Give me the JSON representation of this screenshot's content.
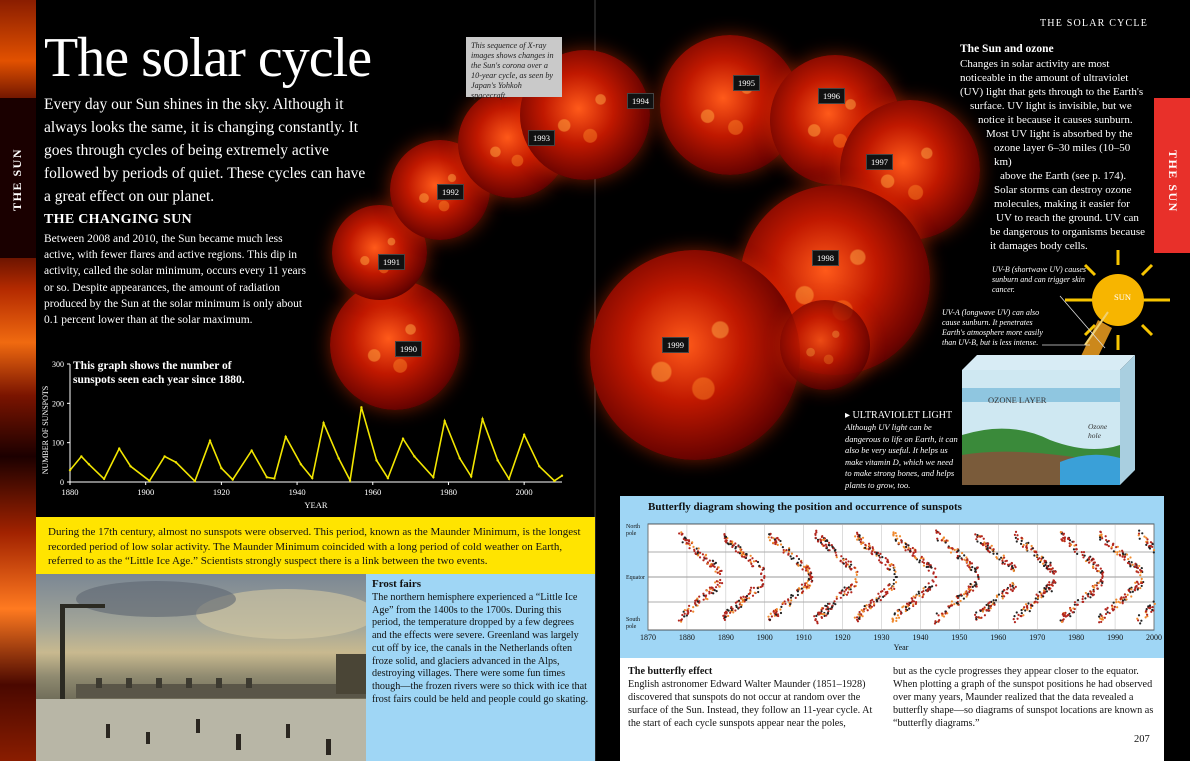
{
  "header": {
    "running_head": "THE SOLAR CYCLE",
    "left_tab": "THE SUN",
    "right_tab": "THE SUN",
    "page_number": "207"
  },
  "intro": {
    "title": "The solar cycle",
    "text": "Every day our Sun shines in the sky. Although it always looks the same, it is changing constantly. It goes through cycles of being extremely active followed by periods of quiet. These cycles can have a great effect on our planet."
  },
  "changing_sun": {
    "heading": "THE CHANGING SUN",
    "text": "Between 2008 and 2010, the Sun became much less active, with fewer flares and active regions. This dip in activity, called the solar minimum, occurs every 11 years or so. Despite appearances, the amount of radiation produced by the Sun at the solar minimum is only about 0.1 percent lower than at the solar maximum."
  },
  "xray": {
    "caption": "This sequence of X-ray images shows changes in the Sun's corona over a 10-year cycle, as seen by Japan's Yohkoh spacecraft.",
    "years": [
      "1990",
      "1991",
      "1992",
      "1993",
      "1994",
      "1995",
      "1996",
      "1997",
      "1998",
      "1999"
    ]
  },
  "sunspot_graph": {
    "caption": "This graph shows the number of sunspots seen each year since 1880.",
    "chart_data": {
      "type": "line",
      "title": "This graph shows the number of sunspots seen each year since 1880.",
      "xlabel": "YEAR",
      "ylabel": "NUMBER OF SUNSPOTS",
      "xlim": [
        1880,
        2010
      ],
      "ylim": [
        0,
        300
      ],
      "x_ticks": [
        "1880",
        "1900",
        "1920",
        "1940",
        "1960",
        "1980",
        "2000"
      ],
      "y_ticks": [
        "0",
        "100",
        "200",
        "300"
      ],
      "grid": false,
      "series_color": "#f2e600",
      "series": [
        {
          "x": [
            1880,
            1883,
            1885,
            1889,
            1893,
            1896,
            1901,
            1905,
            1908,
            1913,
            1917,
            1920,
            1923,
            1928,
            1932,
            1934,
            1937,
            1941,
            1944,
            1947,
            1951,
            1954,
            1957,
            1961,
            1964,
            1968,
            1971,
            1976,
            1979,
            1983,
            1986,
            1989,
            1993,
            1996,
            2000,
            2004,
            2008,
            2010
          ],
          "y": [
            30,
            65,
            45,
            8,
            85,
            40,
            3,
            65,
            50,
            2,
            105,
            35,
            6,
            80,
            12,
            9,
            115,
            45,
            10,
            150,
            60,
            4,
            190,
            55,
            10,
            110,
            65,
            12,
            155,
            60,
            14,
            160,
            55,
            8,
            120,
            40,
            3,
            16
          ]
        }
      ]
    }
  },
  "ozone": {
    "heading": "The Sun and ozone",
    "lines": [
      "Changes in solar activity are most",
      "noticeable in the amount of ultraviolet",
      "(UV) light that gets through to the Earth's",
      "surface. UV light is invisible, but we",
      "notice it because it causes sunburn.",
      "Most UV light is absorbed by the",
      "ozone layer 6–30 miles (10–50 km)",
      "above the Earth (see p. 174).",
      "Solar storms can destroy ozone",
      "molecules, making it easier for",
      "UV to reach the ground. UV can",
      "be dangerous to organisms because",
      "it damages body cells."
    ],
    "uvb_caption": "UV-B (shortwave UV) causes sunburn and can trigger skin cancer.",
    "uva_caption": "UV-A (longwave UV) can also cause sunburn. It penetrates Earth's atmosphere more easily than UV-B, but is less intense.",
    "sun_label": "SUN",
    "ozone_layer_label": "OZONE LAYER",
    "ozone_hole_label": "Ozone hole",
    "uv_light_heading": "ULTRAVIOLET LIGHT",
    "uv_light_text": "Although UV light can be dangerous to life on Earth, it can also be very useful. It helps us make vitamin D, which we need to make strong bones, and helps plants to grow, too."
  },
  "maunder": {
    "text": "During the 17th century, almost no sunspots were observed. This period, known as the Maunder Minimum, is the longest recorded period of low solar activity. The Maunder Minimum coincided with a long period of cold weather on Earth, referred to as the “Little Ice Age.” Scientists strongly suspect there is a link between the two events."
  },
  "frost_fairs": {
    "heading": "Frost fairs",
    "text": "The northern hemisphere experienced a “Little Ice Age” from the 1400s to the 1700s. During this period, the temperature dropped by a few degrees and the effects were severe. Greenland was largely cut off by ice, the canals in the Netherlands often froze solid, and glaciers advanced in the Alps, destroying villages. There were some fun times though—the frozen rivers were so thick with ice that frost fairs could be held and people could go skating."
  },
  "butterfly": {
    "title": "Butterfly diagram showing the position and occurrence of sunspots",
    "y_labels": [
      "North pole",
      "Equator",
      "South pole"
    ],
    "x_ticks": [
      "1870",
      "1880",
      "1890",
      "1900",
      "1910",
      "1920",
      "1930",
      "1940",
      "1950",
      "1960",
      "1970",
      "1980",
      "1990",
      "2000"
    ],
    "xlabel": "Year",
    "chart_data": {
      "type": "scatter",
      "title": "Butterfly diagram showing the position and occurrence of sunspots",
      "xlabel": "Year",
      "xlim": [
        1870,
        2000
      ],
      "y_categories": [
        "North pole",
        "Equator",
        "South pole"
      ],
      "cycle_starts": [
        1878,
        1889,
        1901,
        1913,
        1923,
        1933,
        1944,
        1954,
        1964,
        1976,
        1986,
        1996
      ]
    }
  },
  "butterfly_effect": {
    "heading": "The butterfly effect",
    "col1": "English astronomer Edward Walter Maunder (1851–1928) discovered that sunspots do not occur at random over the surface of the Sun. Instead, they follow an 11-year cycle. At the start of each cycle sunspots appear near the poles,",
    "col2": "but as the cycle progresses they appear closer to the equator. When plotting a graph of the sunspot positions he had observed over many years, Maunder realized that the data revealed a butterfly shape—so diagrams of sunspot locations are known as “butterfly diagrams.”"
  },
  "colors": {
    "left_tab": "#1a0000",
    "right_tab": "#e8302a",
    "yellow_band": "#ffe400",
    "light_blue": "#9fd6f5",
    "sunspot_line": "#f2e600"
  }
}
